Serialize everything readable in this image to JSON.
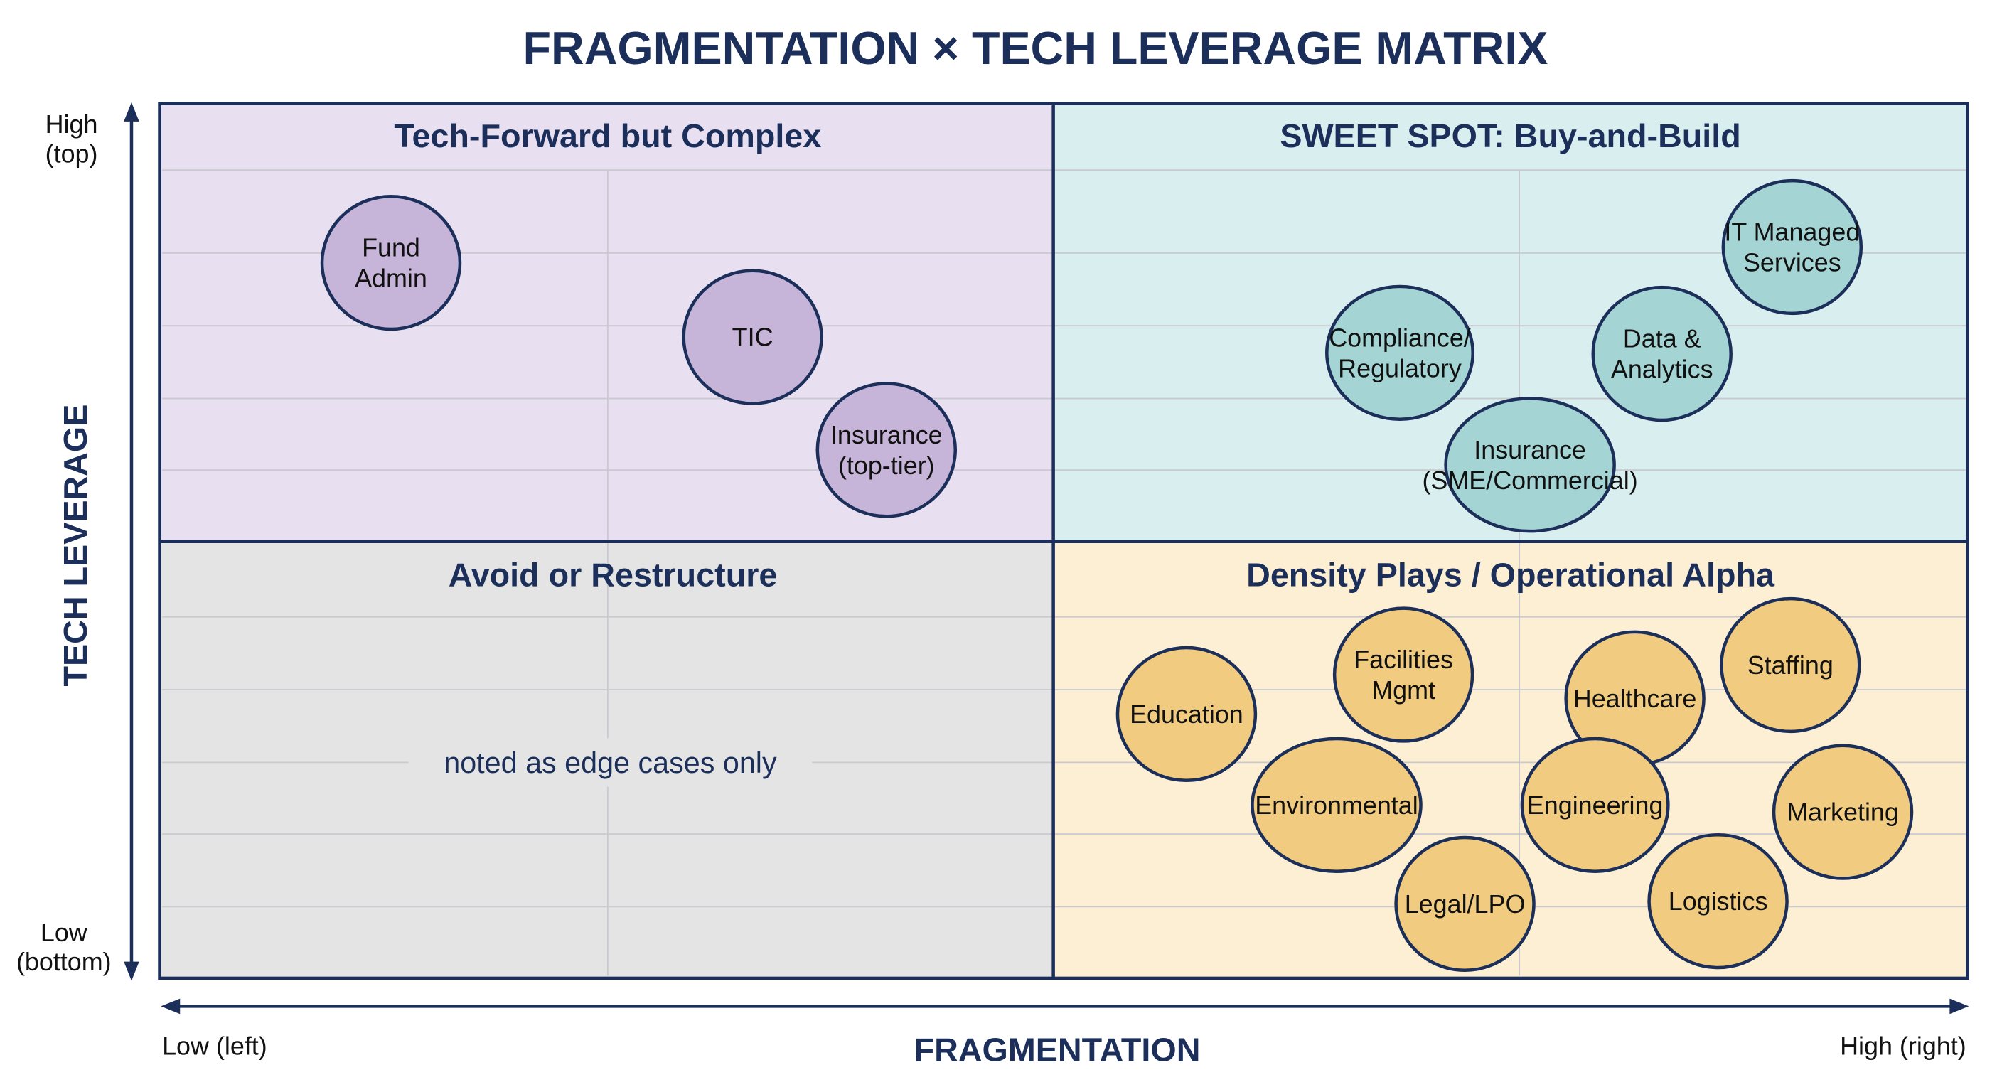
{
  "title": "FRAGMENTATION × TECH LEVERAGE MATRIX",
  "colors": {
    "navy": "#1b2f5a",
    "purple_bg": "#e8dff0",
    "purple_bubble": "#c7b5d9",
    "teal_bg": "#d9eeee",
    "teal_bubble": "#a5d4d4",
    "gray_bg": "#e4e4e4",
    "yellow_bg": "#fcefd3",
    "yellow_bubble": "#f1cc80"
  },
  "axes": {
    "y_title": "TECH LEVERAGE",
    "y_high": [
      "High",
      "(top)"
    ],
    "y_low": [
      "Low",
      "(bottom)"
    ],
    "x_title": "FRAGMENTATION",
    "x_low": "Low (left)",
    "x_high": "High (right)"
  },
  "quadrants": {
    "top_left": "Tech-Forward but Complex",
    "top_right": "SWEET SPOT: Buy-and-Build",
    "bottom_left": "Avoid or Restructure",
    "bottom_right": "Density Plays / Operational Alpha",
    "bottom_left_note": "noted as edge cases only"
  },
  "chart_data": {
    "type": "scatter",
    "xlabel": "FRAGMENTATION",
    "ylabel": "TECH LEVERAGE",
    "xlim": [
      0,
      10
    ],
    "ylim": [
      0,
      10
    ],
    "points": [
      {
        "label_lines": [
          "Fund",
          "Admin"
        ],
        "x": 1.28,
        "y": 8.18,
        "group": "purple"
      },
      {
        "label_lines": [
          "TIC"
        ],
        "x": 3.28,
        "y": 7.33,
        "group": "purple"
      },
      {
        "label_lines": [
          "Insurance",
          "(top-tier)"
        ],
        "x": 4.02,
        "y": 6.04,
        "group": "purple"
      },
      {
        "label_lines": [
          "IT Managed",
          "Services"
        ],
        "x": 9.03,
        "y": 8.36,
        "group": "teal"
      },
      {
        "label_lines": [
          "Compliance/",
          "Regulatory"
        ],
        "x": 6.86,
        "y": 7.15,
        "group": "teal"
      },
      {
        "label_lines": [
          "Data &",
          "Analytics"
        ],
        "x": 8.31,
        "y": 7.14,
        "group": "teal"
      },
      {
        "label_lines": [
          "Insurance",
          "(SME/Commercial)"
        ],
        "x": 7.58,
        "y": 5.87,
        "group": "teal"
      },
      {
        "label_lines": [
          "Education"
        ],
        "x": 5.68,
        "y": 3.02,
        "group": "yellow"
      },
      {
        "label_lines": [
          "Facilities",
          "Mgmt"
        ],
        "x": 6.88,
        "y": 3.47,
        "group": "yellow"
      },
      {
        "label_lines": [
          "Healthcare"
        ],
        "x": 8.16,
        "y": 3.2,
        "group": "yellow"
      },
      {
        "label_lines": [
          "Staffing"
        ],
        "x": 9.02,
        "y": 3.58,
        "group": "yellow"
      },
      {
        "label_lines": [
          "Environmental"
        ],
        "x": 6.51,
        "y": 1.98,
        "group": "yellow"
      },
      {
        "label_lines": [
          "Engineering"
        ],
        "x": 7.94,
        "y": 1.98,
        "group": "yellow"
      },
      {
        "label_lines": [
          "Marketing"
        ],
        "x": 9.31,
        "y": 1.9,
        "group": "yellow"
      },
      {
        "label_lines": [
          "Legal/LPO"
        ],
        "x": 7.22,
        "y": 0.85,
        "group": "yellow"
      },
      {
        "label_lines": [
          "Logistics"
        ],
        "x": 8.62,
        "y": 0.88,
        "group": "yellow"
      }
    ]
  }
}
